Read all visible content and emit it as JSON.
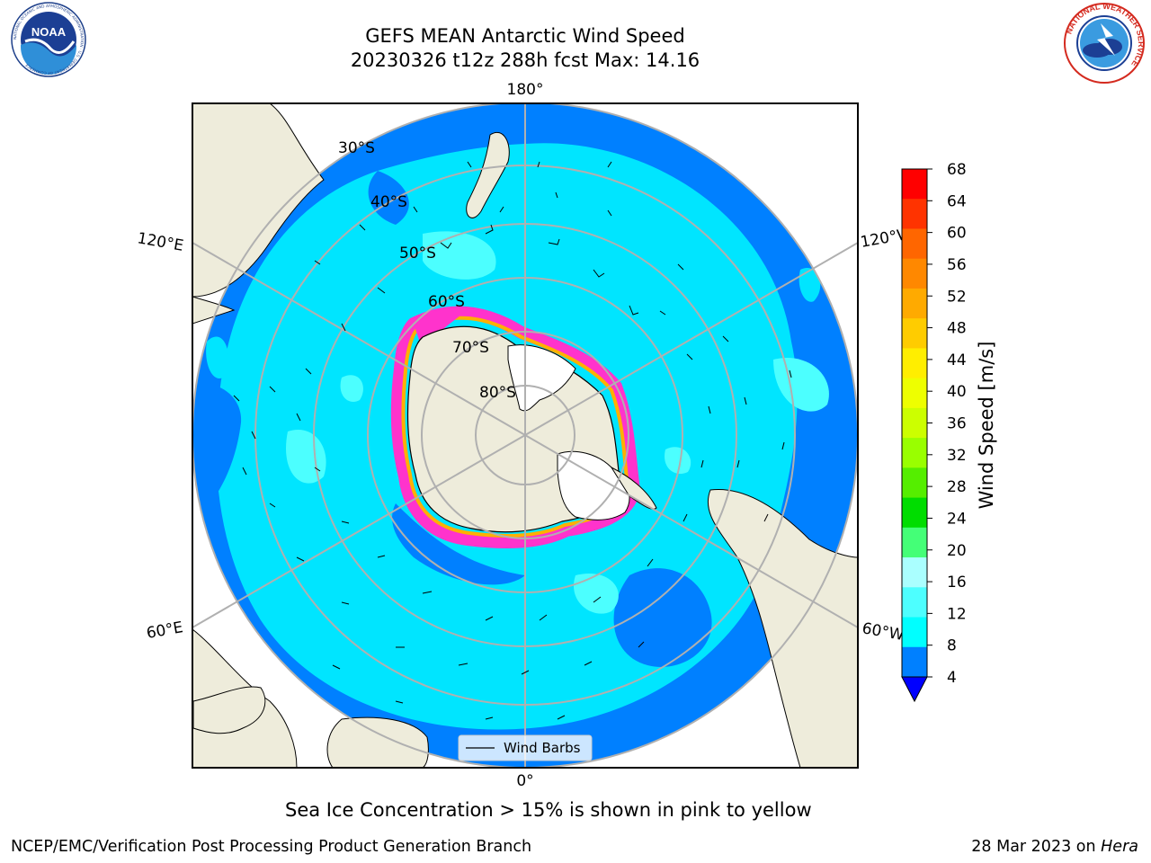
{
  "title": {
    "line1": "GEFS MEAN Antarctic Wind Speed",
    "line2": "20230326 t12z 288h fcst   Max: 14.16"
  },
  "logos": {
    "noaa": {
      "text": "NOAA",
      "ring_text": "NATIONAL OCEANIC AND ATMOSPHERIC ADMINISTRATION · U.S. DEPARTMENT OF COMMERCE"
    },
    "nws": {
      "ring_text": "NATIONAL WEATHER SERVICE"
    }
  },
  "map": {
    "projection": "south-polar-stereographic",
    "longitude_labels": {
      "top": "180°",
      "bottom": "0°",
      "upper_left": "120°E",
      "upper_right": "120°W",
      "lower_left": "60°E",
      "lower_right": "60°W"
    },
    "latitude_labels": [
      "30°S",
      "40°S",
      "50°S",
      "60°S",
      "70°S",
      "80°S"
    ],
    "legend": {
      "label": "Wind Barbs"
    },
    "colors": {
      "land": "#eeecdb",
      "ice_shelf": "#ffffff",
      "band_4_8": "#0080ff",
      "band_8_12": "#00e5ff",
      "band_12_16": "#4cffff",
      "sea_ice": [
        "#ff33cc",
        "#ffb000",
        "#ffee55"
      ],
      "grid": "#b0b0b0"
    }
  },
  "colorbar": {
    "title": "Wind Speed [m/s]",
    "ticks": [
      "68",
      "64",
      "60",
      "56",
      "52",
      "48",
      "44",
      "40",
      "36",
      "32",
      "28",
      "24",
      "20",
      "16",
      "12",
      "8",
      "4"
    ],
    "segments": [
      "#ff0000",
      "#ff3300",
      "#ff6600",
      "#ff8800",
      "#ffaa00",
      "#ffcc00",
      "#ffee00",
      "#eeff00",
      "#ccff00",
      "#99ff00",
      "#55ee00",
      "#00dd00",
      "#44ff77",
      "#aaffff",
      "#4dffff",
      "#00ffff",
      "#0080ff"
    ],
    "extend_color": "#0000ff"
  },
  "caption": "Sea Ice Concentration > 15% is shown in pink to yellow",
  "footer": {
    "left": "NCEP/EMC/Verification Post Processing Product Generation Branch",
    "right_date": "28 Mar 2023 on ",
    "right_host": "Hera"
  }
}
